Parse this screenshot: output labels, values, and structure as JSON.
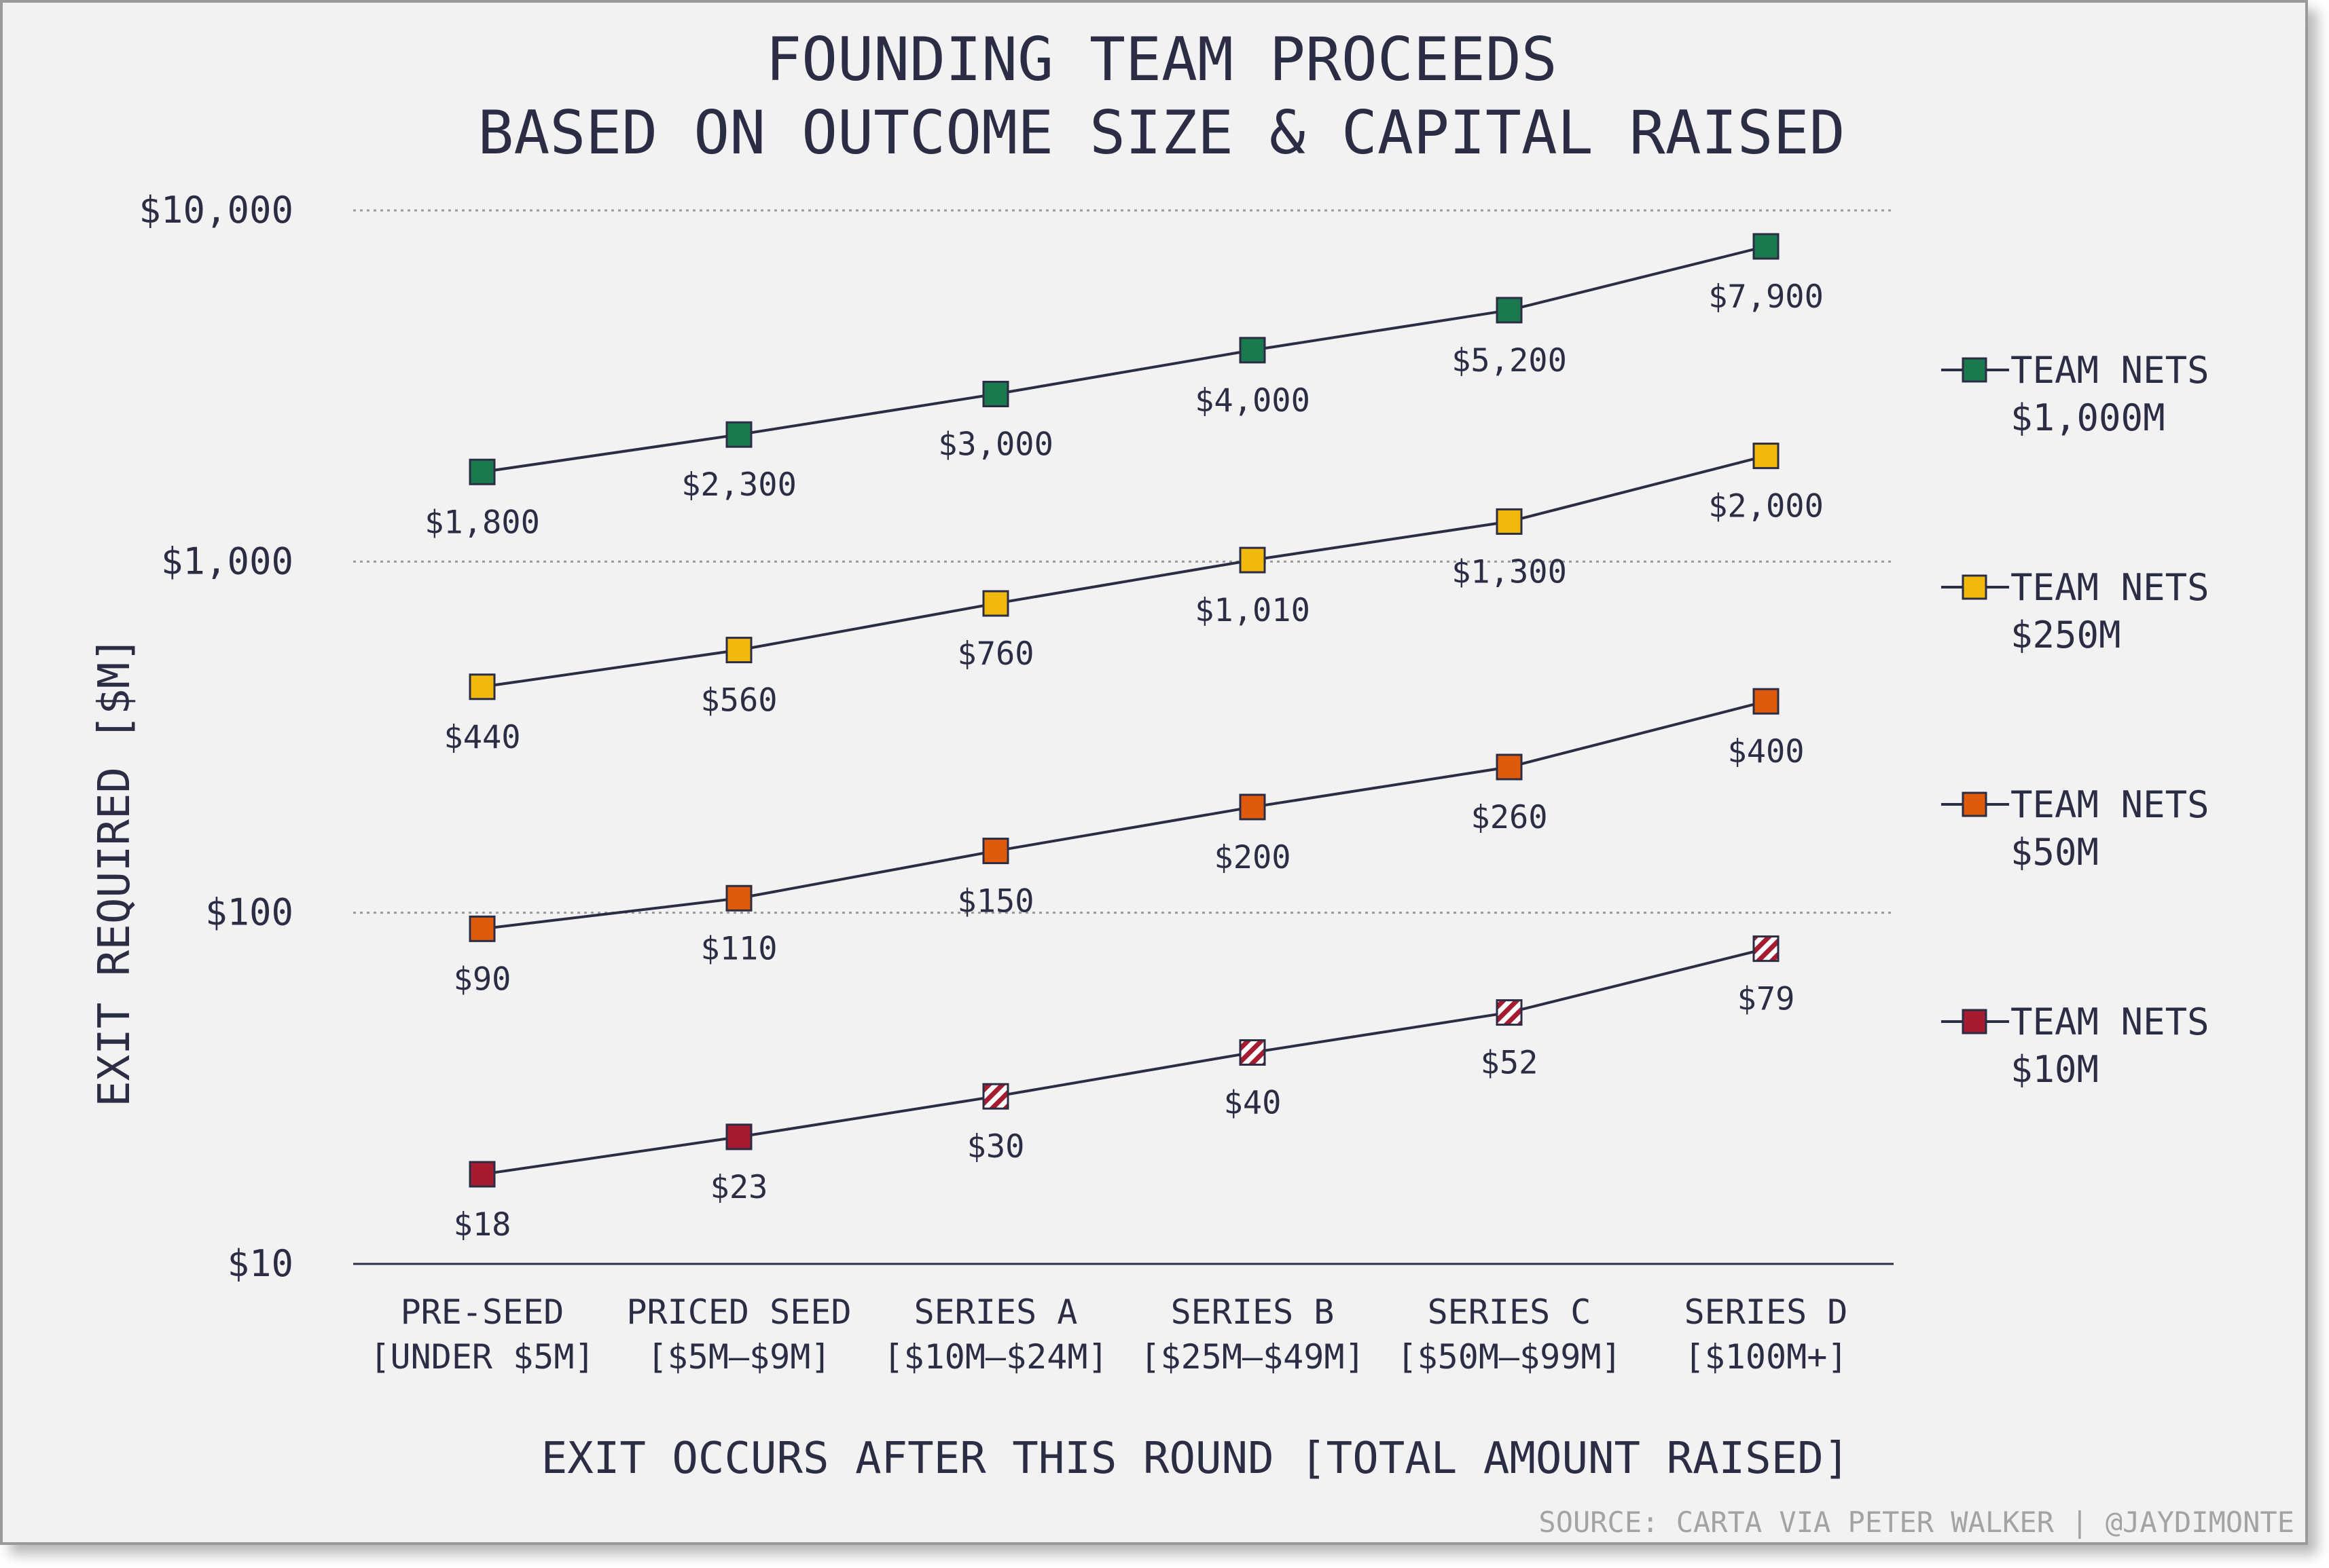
{
  "chart_data": {
    "type": "line",
    "title": [
      "FOUNDING TEAM PROCEEDS",
      "BASED ON OUTCOME SIZE & CAPITAL RAISED"
    ],
    "xlabel": "EXIT OCCURS AFTER THIS ROUND [TOTAL AMOUNT RAISED]",
    "ylabel": "EXIT REQUIRED [$M]",
    "yscale": "log",
    "ylim": [
      10,
      10000
    ],
    "yticks": [
      {
        "value": 10,
        "label": "$10"
      },
      {
        "value": 100,
        "label": "$100"
      },
      {
        "value": 1000,
        "label": "$1,000"
      },
      {
        "value": 10000,
        "label": "$10,000"
      }
    ],
    "categories": [
      {
        "line1": "PRE-SEED",
        "line2": "[UNDER $5M]"
      },
      {
        "line1": "PRICED SEED",
        "line2": "[$5M–$9M]"
      },
      {
        "line1": "SERIES A",
        "line2": "[$10M–$24M]"
      },
      {
        "line1": "SERIES B",
        "line2": "[$25M–$49M]"
      },
      {
        "line1": "SERIES C",
        "line2": "[$50M–$99M]"
      },
      {
        "line1": "SERIES D",
        "line2": "[$100M+]"
      }
    ],
    "series": [
      {
        "name_line1": "TEAM NETS",
        "name_line2": "$1,000M",
        "color": "#1a7a4e",
        "values": [
          1800,
          2300,
          3000,
          4000,
          5200,
          7900
        ],
        "labels": [
          "$1,800",
          "$2,300",
          "$3,000",
          "$4,000",
          "$5,200",
          "$7,900"
        ],
        "hatched": [
          false,
          false,
          false,
          false,
          false,
          false
        ]
      },
      {
        "name_line1": "TEAM NETS",
        "name_line2": "$250M",
        "color": "#f0b90b",
        "values": [
          440,
          560,
          760,
          1010,
          1300,
          2000
        ],
        "labels": [
          "$440",
          "$560",
          "$760",
          "$1,010",
          "$1,300",
          "$2,000"
        ],
        "hatched": [
          false,
          false,
          false,
          false,
          false,
          false
        ]
      },
      {
        "name_line1": "TEAM NETS",
        "name_line2": "$50M",
        "color": "#e05a0c",
        "values": [
          90,
          110,
          150,
          200,
          260,
          400
        ],
        "labels": [
          "$90",
          "$110",
          "$150",
          "$200",
          "$260",
          "$400"
        ],
        "hatched": [
          false,
          false,
          false,
          false,
          false,
          false
        ]
      },
      {
        "name_line1": "TEAM NETS",
        "name_line2": "$10M",
        "color": "#a51c30",
        "values": [
          18,
          23,
          30,
          40,
          52,
          79
        ],
        "labels": [
          "$18",
          "$23",
          "$30",
          "$40",
          "$52",
          "$79"
        ],
        "hatched": [
          false,
          false,
          true,
          true,
          true,
          true
        ]
      }
    ],
    "grid": "horizontal dotted",
    "legend": "right"
  },
  "source": "SOURCE: CARTA VIA PETER WALKER | @JAYDIMONTE",
  "colors": {
    "text": "#2b2d45",
    "line": "#2b2d45",
    "grid": "#9a9a9a",
    "background": "#f2f2f2"
  }
}
